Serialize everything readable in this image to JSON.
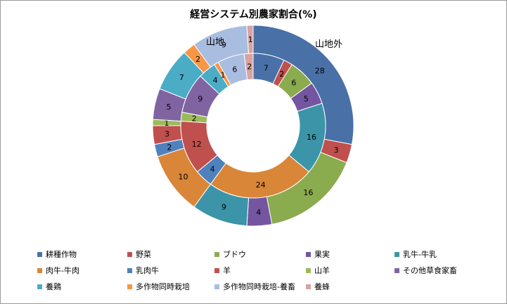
{
  "chart_data": {
    "type": "donut",
    "title": "経営システム別農家割合(%)",
    "categories": [
      "耕種作物",
      "野菜",
      "ブドウ",
      "果実",
      "乳牛-牛乳",
      "肉牛-牛肉",
      "乳肉牛",
      "羊",
      "山羊",
      "その他草食家畜",
      "養鶏",
      "多作物同時栽培",
      "多作物同時栽培-養畜",
      "養蜂"
    ],
    "colors": [
      "#4a70a8",
      "#c0504d",
      "#8bab4f",
      "#7455a0",
      "#3b94a8",
      "#d98639",
      "#4f81bd",
      "#c0504d",
      "#9bbb59",
      "#8064a2",
      "#4bacc6",
      "#f79646",
      "#a9bde0",
      "#d8a3a3"
    ],
    "series": [
      {
        "name": "山地外",
        "ring": "outer",
        "values": [
          28,
          3,
          16,
          4,
          9,
          10,
          2,
          3,
          1,
          5,
          7,
          2,
          9,
          1
        ]
      },
      {
        "name": "山地",
        "ring": "inner",
        "values": [
          7,
          2,
          6,
          5,
          16,
          24,
          4,
          12,
          2,
          9,
          4,
          1,
          6,
          2
        ]
      }
    ],
    "legend_position": "bottom"
  }
}
